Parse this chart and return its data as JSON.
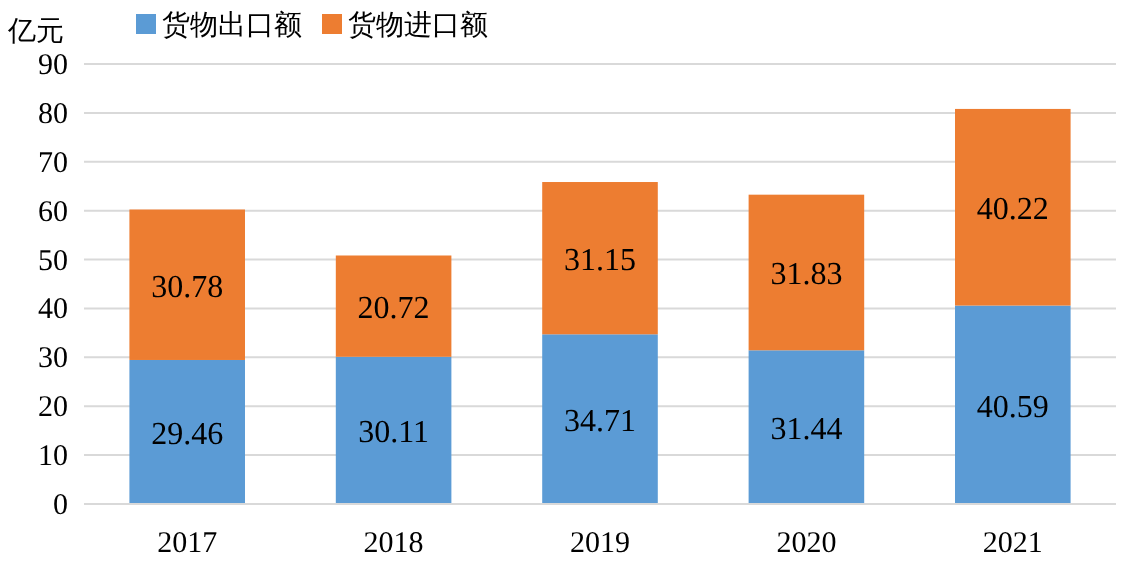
{
  "chart_data": {
    "type": "bar",
    "stacked": true,
    "ylabel": "亿元",
    "categories": [
      "2017",
      "2018",
      "2019",
      "2020",
      "2021"
    ],
    "series": [
      {
        "name": "货物出口额",
        "color": "#5b9bd5",
        "values": [
          29.46,
          30.11,
          34.71,
          31.44,
          40.59
        ]
      },
      {
        "name": "货物进口额",
        "color": "#ed7d31",
        "values": [
          30.78,
          20.72,
          31.15,
          31.83,
          40.22
        ]
      }
    ],
    "ylim": [
      0,
      90
    ],
    "yticks": [
      0,
      10,
      20,
      30,
      40,
      50,
      60,
      70,
      80,
      90
    ],
    "grid": "y",
    "legend": "top",
    "data_labels": true
  }
}
